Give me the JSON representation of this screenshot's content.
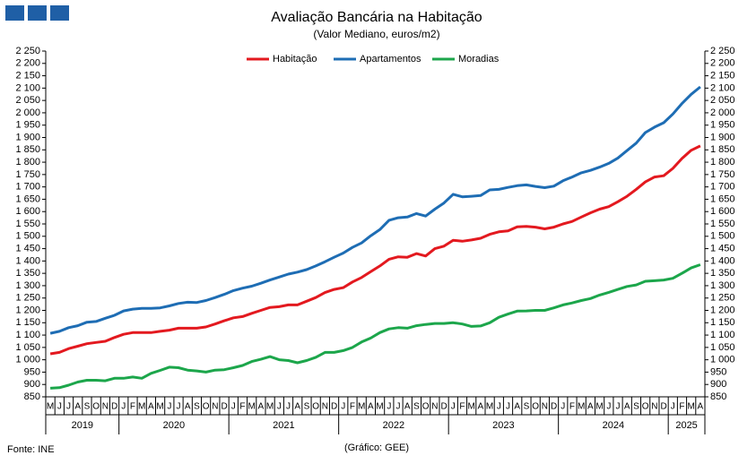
{
  "chart_data": {
    "type": "line",
    "title": "Avaliação Bancária na Habitação",
    "subtitle": "(Valor Mediano, euros/m2)",
    "source": "Fonte: INE",
    "credit": "(Gráfico: GEE)",
    "categories": [
      "M",
      "J",
      "J",
      "A",
      "S",
      "O",
      "N",
      "D",
      "J",
      "F",
      "M",
      "A",
      "M",
      "J",
      "J",
      "A",
      "S",
      "O",
      "N",
      "D",
      "J",
      "F",
      "M",
      "A",
      "M",
      "J",
      "J",
      "A",
      "S",
      "O",
      "N",
      "D",
      "J",
      "F",
      "M",
      "A",
      "M",
      "J",
      "J",
      "A",
      "S",
      "O",
      "N",
      "D",
      "J",
      "F",
      "M",
      "A",
      "M",
      "J",
      "J",
      "A",
      "S",
      "O",
      "N",
      "D",
      "J",
      "F",
      "M",
      "A",
      "M",
      "J",
      "J",
      "A",
      "S",
      "O",
      "N",
      "D",
      "J",
      "F",
      "M",
      "A"
    ],
    "year_groups": [
      {
        "label": "2019",
        "count": 8
      },
      {
        "label": "2020",
        "count": 12
      },
      {
        "label": "2021",
        "count": 12
      },
      {
        "label": "2022",
        "count": 12
      },
      {
        "label": "2023",
        "count": 12
      },
      {
        "label": "2024",
        "count": 12
      },
      {
        "label": "2025",
        "count": 4
      }
    ],
    "series": [
      {
        "name": "Habitação",
        "color": "#e3191f",
        "values": [
          1024,
          1030,
          1045,
          1055,
          1065,
          1070,
          1075,
          1090,
          1103,
          1110,
          1110,
          1110,
          1115,
          1120,
          1128,
          1128,
          1128,
          1133,
          1145,
          1158,
          1170,
          1175,
          1188,
          1200,
          1212,
          1215,
          1222,
          1222,
          1237,
          1252,
          1272,
          1285,
          1292,
          1315,
          1333,
          1357,
          1380,
          1407,
          1417,
          1415,
          1430,
          1420,
          1450,
          1460,
          1484,
          1480,
          1485,
          1492,
          1508,
          1518,
          1522,
          1538,
          1540,
          1537,
          1530,
          1537,
          1550,
          1560,
          1578,
          1595,
          1610,
          1620,
          1640,
          1662,
          1690,
          1720,
          1740,
          1745,
          1775,
          1815,
          1848,
          1866
        ]
      },
      {
        "name": "Apartamentos",
        "color": "#1e6db4",
        "values": [
          1107,
          1115,
          1130,
          1138,
          1152,
          1155,
          1168,
          1180,
          1198,
          1205,
          1208,
          1208,
          1210,
          1218,
          1228,
          1233,
          1232,
          1240,
          1252,
          1265,
          1280,
          1290,
          1298,
          1310,
          1323,
          1335,
          1347,
          1355,
          1365,
          1380,
          1397,
          1415,
          1432,
          1455,
          1473,
          1502,
          1527,
          1565,
          1575,
          1578,
          1592,
          1582,
          1610,
          1635,
          1670,
          1660,
          1662,
          1665,
          1688,
          1690,
          1698,
          1705,
          1708,
          1702,
          1697,
          1703,
          1725,
          1740,
          1757,
          1767,
          1780,
          1795,
          1817,
          1847,
          1877,
          1920,
          1942,
          1960,
          1995,
          2038,
          2075,
          2105
        ]
      },
      {
        "name": "Moradias",
        "color": "#1ca64b",
        "values": [
          885,
          887,
          897,
          910,
          917,
          917,
          915,
          925,
          925,
          930,
          925,
          945,
          957,
          970,
          968,
          958,
          955,
          950,
          958,
          960,
          968,
          977,
          993,
          1002,
          1013,
          1000,
          997,
          988,
          997,
          1010,
          1030,
          1030,
          1037,
          1050,
          1072,
          1088,
          1110,
          1125,
          1130,
          1128,
          1138,
          1143,
          1147,
          1147,
          1150,
          1145,
          1135,
          1137,
          1150,
          1172,
          1185,
          1197,
          1198,
          1200,
          1200,
          1210,
          1222,
          1230,
          1240,
          1248,
          1262,
          1273,
          1285,
          1297,
          1303,
          1318,
          1320,
          1323,
          1330,
          1350,
          1372,
          1385
        ]
      }
    ],
    "ylim": [
      850,
      2250
    ],
    "yticks": [
      850,
      900,
      950,
      {
        "value": 1000,
        "label": "1 000"
      },
      {
        "value": 1050,
        "label": "1 050"
      },
      {
        "value": 1100,
        "label": "1 100"
      },
      {
        "value": 1150,
        "label": "1 150"
      },
      {
        "value": 1200,
        "label": "1 200"
      },
      {
        "value": 1250,
        "label": "1 250"
      },
      {
        "value": 1300,
        "label": "1 300"
      },
      {
        "value": 1350,
        "label": "1 350"
      },
      {
        "value": 1400,
        "label": "1 400"
      },
      {
        "value": 1450,
        "label": "1 450"
      },
      {
        "value": 1500,
        "label": "1 500"
      },
      {
        "value": 1550,
        "label": "1 550"
      },
      {
        "value": 1600,
        "label": "1 600"
      },
      {
        "value": 1650,
        "label": "1 650"
      },
      {
        "value": 1700,
        "label": "1 700"
      },
      {
        "value": 1750,
        "label": "1 750"
      },
      {
        "value": 1800,
        "label": "1 800"
      },
      {
        "value": 1850,
        "label": "1 850"
      },
      {
        "value": 1900,
        "label": "1 900"
      },
      {
        "value": 1950,
        "label": "1 950"
      },
      {
        "value": 2000,
        "label": "2 000"
      },
      {
        "value": 2050,
        "label": "2 050"
      },
      {
        "value": 2100,
        "label": "2 100"
      },
      {
        "value": 2150,
        "label": "2 150"
      },
      {
        "value": 2200,
        "label": "2 200"
      },
      {
        "value": 2250,
        "label": "2 250"
      }
    ],
    "y2lim": [
      850,
      2250
    ],
    "y2ticks": [
      850,
      900,
      950,
      {
        "value": 1000,
        "label": "1 000"
      },
      {
        "value": 1050,
        "label": "1 050"
      },
      {
        "value": 1100,
        "label": "1 100"
      },
      {
        "value": 1150,
        "label": "1 150"
      },
      {
        "value": 1200,
        "label": "1 200"
      },
      {
        "value": 1250,
        "label": "1 250"
      },
      {
        "value": 1300,
        "label": "1 300"
      },
      {
        "value": 1350,
        "label": "1 350"
      },
      {
        "value": 1400,
        "label": "1 400"
      },
      {
        "value": 1450,
        "label": "1 450"
      },
      {
        "value": 1500,
        "label": "1 500"
      },
      {
        "value": 1550,
        "label": "1 550"
      },
      {
        "value": 1600,
        "label": "1 600"
      },
      {
        "value": 1650,
        "label": "1 650"
      },
      {
        "value": 1700,
        "label": "1 700"
      },
      {
        "value": 1750,
        "label": "1 750"
      },
      {
        "value": 1800,
        "label": "1 800"
      },
      {
        "value": 1850,
        "label": "1 850"
      },
      {
        "value": 1900,
        "label": "1 900"
      },
      {
        "value": 1950,
        "label": "1 950"
      },
      {
        "value": 2000,
        "label": "2 000"
      },
      {
        "value": 2050,
        "label": "2 050"
      },
      {
        "value": 2100,
        "label": "2 100"
      },
      {
        "value": 2150,
        "label": "2 150"
      },
      {
        "value": 2200,
        "label": "2 200"
      },
      {
        "value": 2250,
        "label": "2 250"
      }
    ],
    "grid": false,
    "legend": "top"
  }
}
